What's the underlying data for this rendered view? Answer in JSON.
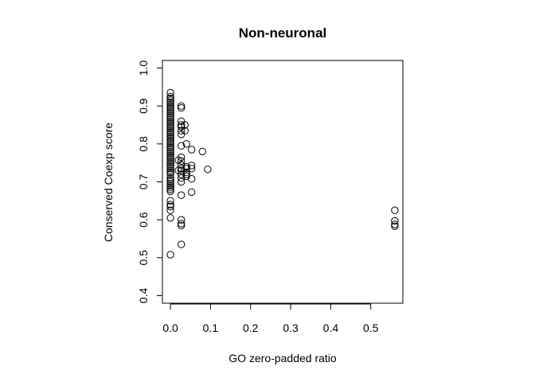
{
  "chart_data": {
    "type": "scatter",
    "title": "Non-neuronal",
    "xlabel": "GO zero-padded ratio",
    "ylabel": "Conserved Coexp score",
    "xlim": [
      -0.02,
      0.58
    ],
    "ylim": [
      0.38,
      1.02
    ],
    "x_ticks": [
      "0.0",
      "0.1",
      "0.2",
      "0.3",
      "0.4",
      "0.5"
    ],
    "y_ticks": [
      "0.4",
      "0.5",
      "0.6",
      "0.7",
      "0.8",
      "0.9",
      "1.0"
    ],
    "grid": false,
    "legend": "none",
    "marker": "open-circle",
    "color": "#000000",
    "points": [
      [
        0,
        0.935
      ],
      [
        0,
        0.925
      ],
      [
        0,
        0.92
      ],
      [
        0,
        0.915
      ],
      [
        0,
        0.91
      ],
      [
        0,
        0.905
      ],
      [
        0,
        0.9
      ],
      [
        0,
        0.895
      ],
      [
        0,
        0.89
      ],
      [
        0,
        0.885
      ],
      [
        0,
        0.88
      ],
      [
        0,
        0.875
      ],
      [
        0,
        0.87
      ],
      [
        0,
        0.865
      ],
      [
        0,
        0.86
      ],
      [
        0,
        0.855
      ],
      [
        0,
        0.85
      ],
      [
        0,
        0.845
      ],
      [
        0,
        0.84
      ],
      [
        0,
        0.835
      ],
      [
        0,
        0.83
      ],
      [
        0,
        0.825
      ],
      [
        0,
        0.82
      ],
      [
        0,
        0.815
      ],
      [
        0,
        0.81
      ],
      [
        0,
        0.805
      ],
      [
        0,
        0.8
      ],
      [
        0,
        0.795
      ],
      [
        0,
        0.79
      ],
      [
        0,
        0.785
      ],
      [
        0,
        0.78
      ],
      [
        0,
        0.775
      ],
      [
        0,
        0.77
      ],
      [
        0,
        0.765
      ],
      [
        0,
        0.76
      ],
      [
        0,
        0.755
      ],
      [
        0,
        0.75
      ],
      [
        0,
        0.745
      ],
      [
        0,
        0.74
      ],
      [
        0,
        0.735
      ],
      [
        0,
        0.73
      ],
      [
        0,
        0.725
      ],
      [
        0,
        0.72
      ],
      [
        0,
        0.71
      ],
      [
        0,
        0.705
      ],
      [
        0,
        0.7
      ],
      [
        0,
        0.695
      ],
      [
        0,
        0.69
      ],
      [
        0,
        0.685
      ],
      [
        0,
        0.68
      ],
      [
        0,
        0.675
      ],
      [
        0,
        0.65
      ],
      [
        0,
        0.64
      ],
      [
        0,
        0.635
      ],
      [
        0,
        0.625
      ],
      [
        0,
        0.605
      ],
      [
        0,
        0.508
      ],
      [
        0.027,
        0.9
      ],
      [
        0.027,
        0.895
      ],
      [
        0.027,
        0.86
      ],
      [
        0.027,
        0.85
      ],
      [
        0.027,
        0.845
      ],
      [
        0.027,
        0.835
      ],
      [
        0.027,
        0.825
      ],
      [
        0.027,
        0.795
      ],
      [
        0.027,
        0.765
      ],
      [
        0.027,
        0.755
      ],
      [
        0.027,
        0.745
      ],
      [
        0.027,
        0.735
      ],
      [
        0.027,
        0.73
      ],
      [
        0.027,
        0.72
      ],
      [
        0.027,
        0.71
      ],
      [
        0.027,
        0.7
      ],
      [
        0.027,
        0.665
      ],
      [
        0.027,
        0.6
      ],
      [
        0.027,
        0.59
      ],
      [
        0.027,
        0.585
      ],
      [
        0.027,
        0.535
      ],
      [
        0.02,
        0.757
      ],
      [
        0.02,
        0.73
      ],
      [
        0.036,
        0.85
      ],
      [
        0.036,
        0.835
      ],
      [
        0.04,
        0.8
      ],
      [
        0.04,
        0.74
      ],
      [
        0.04,
        0.735
      ],
      [
        0.04,
        0.725
      ],
      [
        0.04,
        0.72
      ],
      [
        0.04,
        0.715
      ],
      [
        0.053,
        0.785
      ],
      [
        0.053,
        0.743
      ],
      [
        0.053,
        0.735
      ],
      [
        0.053,
        0.708
      ],
      [
        0.053,
        0.673
      ],
      [
        0.08,
        0.78
      ],
      [
        0.093,
        0.733
      ],
      [
        0.56,
        0.625
      ],
      [
        0.56,
        0.597
      ],
      [
        0.56,
        0.588
      ],
      [
        0.56,
        0.583
      ]
    ]
  }
}
